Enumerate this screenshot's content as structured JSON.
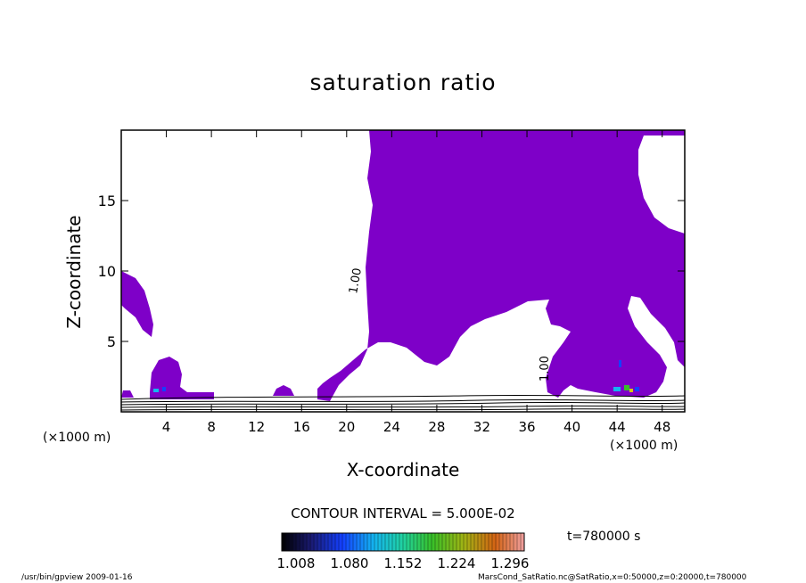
{
  "chart_data": {
    "type": "heatmap",
    "title": "saturation ratio",
    "xlabel": "X-coordinate",
    "ylabel": "Z-coordinate",
    "x_unit_label": "(×1000 m)",
    "xlim": [
      0,
      50
    ],
    "ylim": [
      0,
      20
    ],
    "x_ticks": [
      4,
      8,
      12,
      16,
      20,
      24,
      28,
      32,
      36,
      40,
      44,
      48
    ],
    "y_ticks": [
      5,
      10,
      15
    ],
    "contour_label": "1.00",
    "contour_interval_text": "CONTOUR INTERVAL = 5.000E-02",
    "colorbar": {
      "min": 1.008,
      "max": 1.296,
      "tick_labels": [
        "1.008",
        "1.080",
        "1.152",
        "1.224",
        "1.296"
      ]
    },
    "fill_color": "#7e00c8",
    "time_text": "t=780000 s"
  },
  "footer": {
    "program": "/usr/bin/gpview  2009-01-16",
    "source": "MarsCond_SatRatio.nc@SatRatio,x=0:50000,z=0:20000,t=780000"
  }
}
